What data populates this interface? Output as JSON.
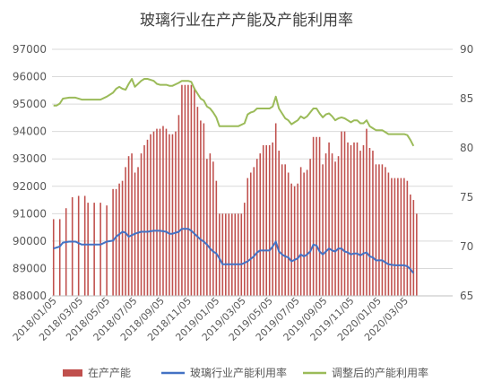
{
  "chart_data": {
    "type": "bar-line-combo",
    "title": "玻璃行业在产产能及产能利用率",
    "y_left": {
      "min": 88000,
      "max": 97000,
      "step": 1000,
      "ticks": [
        "88000",
        "89000",
        "90000",
        "91000",
        "92000",
        "93000",
        "94000",
        "95000",
        "96000",
        "97000"
      ]
    },
    "y_right": {
      "min": 65,
      "max": 90,
      "step": 5,
      "ticks": [
        "65",
        "70",
        "75",
        "80",
        "85",
        "90"
      ]
    },
    "x_tick_labels": [
      "2018/01/05",
      "2018/03/05",
      "2018/05/05",
      "2018/07/05",
      "2018/09/05",
      "2018/11/05",
      "2019/01/05",
      "2019/03/05",
      "2019/05/05",
      "2019/07/05",
      "2019/09/05",
      "2019/11/05",
      "2020/01/05",
      "2020/03/05"
    ],
    "x_weeks_total": 128,
    "x_tick_weeks": [
      0,
      8.4,
      17,
      25.7,
      34.4,
      43,
      52,
      60.4,
      69,
      77.6,
      86.4,
      95,
      103.7,
      112.3
    ],
    "grid": true,
    "legend_position": "bottom",
    "colors": {
      "bar": "#c0504d",
      "util": "#4472c4",
      "adjusted": "#9bbb59",
      "grid": "#d9d9d9",
      "axis_text": "#595959"
    },
    "series": [
      {
        "name": "在产产能",
        "kind": "bar",
        "axis": "left",
        "points": [
          [
            0,
            90800
          ],
          [
            2,
            90800
          ],
          [
            4,
            91200
          ],
          [
            6,
            91600
          ],
          [
            8,
            91650
          ],
          [
            10,
            91650
          ],
          [
            11,
            91400
          ],
          [
            13,
            91400
          ],
          [
            15,
            91400
          ],
          [
            17,
            91300
          ],
          [
            19,
            91900
          ],
          [
            20,
            91900
          ],
          [
            21,
            92100
          ],
          [
            22,
            92200
          ],
          [
            23,
            92700
          ],
          [
            24,
            93100
          ],
          [
            25,
            93200
          ],
          [
            26,
            92500
          ],
          [
            27,
            92700
          ],
          [
            28,
            93200
          ],
          [
            29,
            93500
          ],
          [
            30,
            93700
          ],
          [
            31,
            93900
          ],
          [
            32,
            94000
          ],
          [
            33,
            94100
          ],
          [
            34,
            94100
          ],
          [
            35,
            94200
          ],
          [
            36,
            94100
          ],
          [
            37,
            93900
          ],
          [
            38,
            93900
          ],
          [
            39,
            94000
          ],
          [
            40,
            94600
          ],
          [
            41,
            95700
          ],
          [
            42,
            95700
          ],
          [
            43,
            95700
          ],
          [
            44,
            95700
          ],
          [
            45,
            95600
          ],
          [
            46,
            94900
          ],
          [
            47,
            94400
          ],
          [
            48,
            94300
          ],
          [
            49,
            93000
          ],
          [
            50,
            93200
          ],
          [
            51,
            92900
          ],
          [
            52,
            92200
          ],
          [
            53,
            91000
          ],
          [
            54,
            91000
          ],
          [
            55,
            91000
          ],
          [
            56,
            91000
          ],
          [
            57,
            91000
          ],
          [
            58,
            91000
          ],
          [
            59,
            91000
          ],
          [
            60,
            91000
          ],
          [
            61,
            91400
          ],
          [
            62,
            92300
          ],
          [
            63,
            92500
          ],
          [
            64,
            92700
          ],
          [
            65,
            93000
          ],
          [
            66,
            93200
          ],
          [
            67,
            93500
          ],
          [
            68,
            93500
          ],
          [
            69,
            93500
          ],
          [
            70,
            93600
          ],
          [
            71,
            94300
          ],
          [
            72,
            93300
          ],
          [
            73,
            92800
          ],
          [
            74,
            92800
          ],
          [
            75,
            92500
          ],
          [
            76,
            92100
          ],
          [
            77,
            92000
          ],
          [
            78,
            92100
          ],
          [
            79,
            92700
          ],
          [
            80,
            92500
          ],
          [
            81,
            92600
          ],
          [
            82,
            93000
          ],
          [
            83,
            93800
          ],
          [
            84,
            93800
          ],
          [
            85,
            93800
          ],
          [
            86,
            92800
          ],
          [
            87,
            93200
          ],
          [
            88,
            93600
          ],
          [
            89,
            93200
          ],
          [
            90,
            92900
          ],
          [
            91,
            93100
          ],
          [
            92,
            94000
          ],
          [
            93,
            94000
          ],
          [
            94,
            93600
          ],
          [
            95,
            93500
          ],
          [
            96,
            93600
          ],
          [
            97,
            93600
          ],
          [
            98,
            93300
          ],
          [
            99,
            93500
          ],
          [
            100,
            94100
          ],
          [
            101,
            93400
          ],
          [
            102,
            93300
          ],
          [
            103,
            92800
          ],
          [
            104,
            92800
          ],
          [
            105,
            92800
          ],
          [
            106,
            92700
          ],
          [
            107,
            92500
          ],
          [
            108,
            92300
          ],
          [
            109,
            92300
          ],
          [
            110,
            92300
          ],
          [
            111,
            92300
          ],
          [
            112,
            92300
          ],
          [
            113,
            92200
          ],
          [
            114,
            91700
          ],
          [
            115,
            91500
          ],
          [
            116,
            91000
          ]
        ]
      },
      {
        "name": "玻璃行业产能利用率",
        "kind": "line",
        "axis": "right",
        "points": [
          [
            0,
            69.8
          ],
          [
            2,
            70.0
          ],
          [
            3,
            70.4
          ],
          [
            5,
            70.5
          ],
          [
            7,
            70.5
          ],
          [
            9,
            70.2
          ],
          [
            11,
            70.2
          ],
          [
            13,
            70.2
          ],
          [
            15,
            70.2
          ],
          [
            17,
            70.5
          ],
          [
            19,
            70.6
          ],
          [
            20,
            71.0
          ],
          [
            22,
            71.5
          ],
          [
            23,
            71.4
          ],
          [
            24,
            71.0
          ],
          [
            26,
            71.3
          ],
          [
            28,
            71.5
          ],
          [
            30,
            71.5
          ],
          [
            32,
            71.6
          ],
          [
            34,
            71.6
          ],
          [
            36,
            71.5
          ],
          [
            37,
            71.3
          ],
          [
            38,
            71.3
          ],
          [
            40,
            71.5
          ],
          [
            41,
            71.8
          ],
          [
            43,
            71.8
          ],
          [
            44,
            71.6
          ],
          [
            45,
            71.3
          ],
          [
            46,
            71.0
          ],
          [
            47,
            70.7
          ],
          [
            48,
            70.5
          ],
          [
            49,
            70.2
          ],
          [
            50,
            69.8
          ],
          [
            51,
            69.5
          ],
          [
            52,
            69.3
          ],
          [
            53,
            68.8
          ],
          [
            54,
            68.2
          ],
          [
            55,
            68.2
          ],
          [
            56,
            68.2
          ],
          [
            58,
            68.2
          ],
          [
            60,
            68.2
          ],
          [
            62,
            68.5
          ],
          [
            64,
            69.0
          ],
          [
            65,
            69.4
          ],
          [
            66,
            69.6
          ],
          [
            68,
            69.6
          ],
          [
            69,
            69.6
          ],
          [
            70,
            70.0
          ],
          [
            71,
            70.5
          ],
          [
            72,
            69.5
          ],
          [
            73,
            69.2
          ],
          [
            74,
            69.0
          ],
          [
            75,
            68.9
          ],
          [
            76,
            68.5
          ],
          [
            78,
            68.8
          ],
          [
            79,
            69.2
          ],
          [
            80,
            69.0
          ],
          [
            81,
            69.2
          ],
          [
            82,
            69.5
          ],
          [
            83,
            70.2
          ],
          [
            84,
            70.1
          ],
          [
            85,
            69.5
          ],
          [
            86,
            69.2
          ],
          [
            87,
            69.5
          ],
          [
            88,
            69.8
          ],
          [
            89,
            69.6
          ],
          [
            90,
            69.5
          ],
          [
            91,
            69.8
          ],
          [
            92,
            69.8
          ],
          [
            93,
            69.5
          ],
          [
            94,
            69.4
          ],
          [
            95,
            69.2
          ],
          [
            96,
            69.3
          ],
          [
            97,
            69.3
          ],
          [
            98,
            69.1
          ],
          [
            99,
            69.3
          ],
          [
            100,
            69.4
          ],
          [
            101,
            69.0
          ],
          [
            102,
            68.9
          ],
          [
            103,
            68.6
          ],
          [
            105,
            68.6
          ],
          [
            106,
            68.4
          ],
          [
            107,
            68.2
          ],
          [
            109,
            68.1
          ],
          [
            111,
            68.1
          ],
          [
            112,
            68.1
          ],
          [
            113,
            68.0
          ],
          [
            114,
            67.7
          ],
          [
            115,
            67.3
          ]
        ]
      },
      {
        "name": "调整后的产能利用率",
        "kind": "line",
        "axis": "right",
        "points": [
          [
            0,
            84.3
          ],
          [
            1,
            84.3
          ],
          [
            2,
            84.5
          ],
          [
            3,
            85.0
          ],
          [
            5,
            85.1
          ],
          [
            7,
            85.1
          ],
          [
            9,
            84.9
          ],
          [
            11,
            84.9
          ],
          [
            13,
            84.9
          ],
          [
            15,
            84.9
          ],
          [
            17,
            85.2
          ],
          [
            19,
            85.6
          ],
          [
            20,
            86.0
          ],
          [
            21,
            86.2
          ],
          [
            22,
            86.0
          ],
          [
            23,
            85.9
          ],
          [
            24,
            86.5
          ],
          [
            25,
            87.0
          ],
          [
            26,
            86.2
          ],
          [
            27,
            86.5
          ],
          [
            28,
            86.8
          ],
          [
            29,
            87.0
          ],
          [
            30,
            87.0
          ],
          [
            31,
            86.9
          ],
          [
            32,
            86.8
          ],
          [
            33,
            86.5
          ],
          [
            34,
            86.4
          ],
          [
            36,
            86.4
          ],
          [
            37,
            86.3
          ],
          [
            38,
            86.3
          ],
          [
            40,
            86.6
          ],
          [
            41,
            86.8
          ],
          [
            43,
            86.8
          ],
          [
            44,
            86.7
          ],
          [
            45,
            86.0
          ],
          [
            46,
            85.5
          ],
          [
            47,
            85.0
          ],
          [
            48,
            84.8
          ],
          [
            49,
            84.2
          ],
          [
            50,
            84.0
          ],
          [
            51,
            83.6
          ],
          [
            52,
            83.1
          ],
          [
            53,
            82.2
          ],
          [
            55,
            82.2
          ],
          [
            57,
            82.2
          ],
          [
            59,
            82.2
          ],
          [
            61,
            82.5
          ],
          [
            62,
            83.4
          ],
          [
            63,
            83.6
          ],
          [
            64,
            83.7
          ],
          [
            65,
            84.0
          ],
          [
            66,
            84.0
          ],
          [
            67,
            84.0
          ],
          [
            68,
            84.0
          ],
          [
            69,
            84.0
          ],
          [
            70,
            84.2
          ],
          [
            71,
            85.2
          ],
          [
            72,
            84.0
          ],
          [
            73,
            83.5
          ],
          [
            74,
            83.0
          ],
          [
            75,
            82.8
          ],
          [
            76,
            82.4
          ],
          [
            77,
            82.6
          ],
          [
            78,
            82.8
          ],
          [
            79,
            83.2
          ],
          [
            80,
            83.0
          ],
          [
            81,
            83.2
          ],
          [
            82,
            83.6
          ],
          [
            83,
            84.0
          ],
          [
            84,
            84.0
          ],
          [
            85,
            83.5
          ],
          [
            86,
            83.1
          ],
          [
            87,
            83.4
          ],
          [
            88,
            83.5
          ],
          [
            89,
            83.2
          ],
          [
            90,
            82.8
          ],
          [
            91,
            83.0
          ],
          [
            92,
            83.1
          ],
          [
            93,
            83.0
          ],
          [
            94,
            82.8
          ],
          [
            95,
            82.6
          ],
          [
            96,
            82.8
          ],
          [
            97,
            82.8
          ],
          [
            98,
            82.5
          ],
          [
            99,
            82.5
          ],
          [
            100,
            82.8
          ],
          [
            101,
            82.2
          ],
          [
            102,
            82.0
          ],
          [
            103,
            81.8
          ],
          [
            105,
            81.8
          ],
          [
            106,
            81.6
          ],
          [
            107,
            81.4
          ],
          [
            108,
            81.4
          ],
          [
            110,
            81.4
          ],
          [
            111,
            81.4
          ],
          [
            112,
            81.4
          ],
          [
            113,
            81.3
          ],
          [
            114,
            80.8
          ],
          [
            115,
            80.2
          ]
        ]
      }
    ]
  }
}
